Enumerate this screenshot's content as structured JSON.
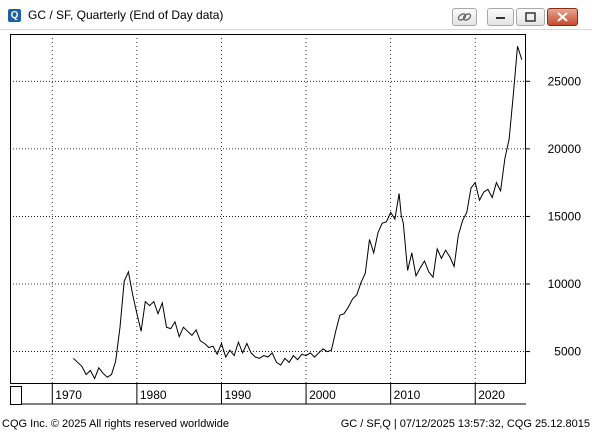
{
  "window": {
    "title": "GC / SF, Quarterly (End of Day data)",
    "app_icon_letter": "Q"
  },
  "footer": {
    "left": "CQG Inc. © 2025 All rights reserved worldwide",
    "right": "GC / SF,Q | 07/12/2025 13:57:32, CQG 25.12.8015"
  },
  "chart_data": {
    "type": "line",
    "title": "",
    "xlabel": "",
    "ylabel": "",
    "xlim": [
      1965,
      2026
    ],
    "ylim": [
      2600,
      28500
    ],
    "x_ticks": [
      1970,
      1980,
      1990,
      2000,
      2010,
      2020
    ],
    "x_tick_labels": [
      "1970",
      "1980",
      "1990",
      "2000",
      "2010",
      "2020"
    ],
    "y_ticks": [
      5000,
      10000,
      15000,
      20000,
      25000
    ],
    "y_tick_labels": [
      "5000",
      "10000",
      "15000",
      "20000",
      "25000"
    ],
    "grid": true,
    "line_color": "#000000",
    "series": [
      {
        "x": [
          1972.5,
          1973.5,
          1974.0,
          1974.5,
          1975.0,
          1975.5,
          1976.0,
          1976.5,
          1977.0,
          1977.5,
          1978.0,
          1978.5,
          1979.0,
          1979.5,
          1980.0,
          1980.5,
          1981.0,
          1981.5,
          1982.0,
          1982.5,
          1983.0,
          1983.5,
          1984.0,
          1984.5,
          1985.0,
          1985.5,
          1986.0,
          1986.5,
          1987.0,
          1987.5,
          1988.0,
          1988.5,
          1989.0,
          1989.5,
          1990.0,
          1990.5,
          1991.0,
          1991.5,
          1992.0,
          1992.5,
          1993.0,
          1993.5,
          1994.0,
          1994.5,
          1995.0,
          1995.5,
          1996.0,
          1996.5,
          1997.0,
          1997.5,
          1998.0,
          1998.5,
          1999.0,
          1999.5,
          2000.0,
          2000.5,
          2001.0,
          2001.5,
          2002.0,
          2002.5,
          2003.0,
          2003.5,
          2004.0,
          2004.5,
          2005.0,
          2005.5,
          2006.0,
          2006.5,
          2007.0,
          2007.5,
          2008.0,
          2008.5,
          2009.0,
          2009.5,
          2010.0,
          2010.5,
          2011.0,
          2011.25,
          2011.5,
          2012.0,
          2012.5,
          2013.0,
          2013.5,
          2014.0,
          2014.5,
          2015.0,
          2015.5,
          2016.0,
          2016.5,
          2017.0,
          2017.5,
          2018.0,
          2018.5,
          2019.0,
          2019.5,
          2020.0,
          2020.5,
          2021.0,
          2021.5,
          2022.0,
          2022.5,
          2023.0,
          2023.5,
          2024.0,
          2024.5,
          2025.0,
          2025.5
        ],
        "y": [
          4500,
          3900,
          3300,
          3600,
          3000,
          3800,
          3400,
          3100,
          3300,
          4300,
          6800,
          10200,
          10900,
          9200,
          7800,
          6500,
          8700,
          8400,
          8700,
          7800,
          8600,
          6800,
          6700,
          7200,
          6100,
          6800,
          6500,
          6200,
          6600,
          5800,
          5600,
          5300,
          5400,
          4800,
          5600,
          4600,
          5100,
          4700,
          5700,
          4900,
          5600,
          4900,
          4600,
          4500,
          4700,
          4600,
          4900,
          4200,
          4000,
          4500,
          4200,
          4700,
          4400,
          4800,
          4700,
          4900,
          4600,
          4900,
          5200,
          5000,
          5100,
          6500,
          7700,
          7800,
          8300,
          8900,
          9200,
          10100,
          10800,
          13300,
          12300,
          13800,
          14500,
          14600,
          15300,
          14800,
          16700,
          15100,
          14500,
          11000,
          12300,
          10600,
          11200,
          11700,
          10900,
          10500,
          12600,
          11900,
          12500,
          12000,
          11300,
          13600,
          14700,
          15300,
          17100,
          17500,
          16200,
          16800,
          17000,
          16400,
          17500,
          16900,
          19300,
          20700,
          24000,
          27600,
          26600
        ]
      }
    ]
  }
}
